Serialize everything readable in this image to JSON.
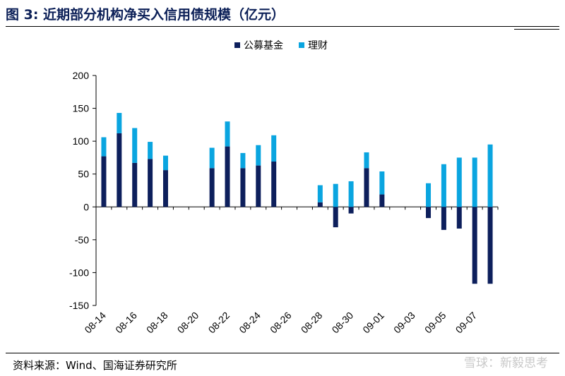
{
  "header": {
    "title": "图 3:  近期部分机构净买入信用债规模（亿元）"
  },
  "footer": {
    "source": "资料来源：Wind、国海证券研究所",
    "watermark": "雪球：新毅思考"
  },
  "colors": {
    "fund": "#0d1f5c",
    "wealth": "#0aa5e0",
    "title": "#0b1f57"
  },
  "chart_data": {
    "type": "bar",
    "stacked": true,
    "title": "",
    "xlabel": "",
    "ylabel": "",
    "ylim": [
      -150,
      200
    ],
    "yticks": [
      -150,
      -100,
      -50,
      0,
      50,
      100,
      150,
      200
    ],
    "grid": false,
    "legend_position": "top-center",
    "x": [
      "08-14",
      "08-15",
      "08-16",
      "08-17",
      "08-18",
      "08-19",
      "08-20",
      "08-21",
      "08-22",
      "08-23",
      "08-24",
      "08-25",
      "08-26",
      "08-27",
      "08-28",
      "08-29",
      "08-30",
      "08-31",
      "09-01",
      "09-02",
      "09-03",
      "09-04",
      "09-05",
      "09-06",
      "09-07",
      "09-08"
    ],
    "xtick_labels": [
      "08-14",
      "08-16",
      "08-18",
      "08-20",
      "08-22",
      "08-24",
      "08-26",
      "08-28",
      "08-30",
      "09-01",
      "09-03",
      "09-05",
      "09-07"
    ],
    "series": [
      {
        "name": "公募基金",
        "color": "#0d1f5c",
        "values": [
          77,
          112,
          67,
          73,
          56,
          null,
          null,
          59,
          92,
          59,
          63,
          69,
          null,
          null,
          7,
          -31,
          -10,
          59,
          19,
          null,
          null,
          -17,
          -35,
          -33,
          -117,
          -117
        ]
      },
      {
        "name": "理财",
        "color": "#0aa5e0",
        "values": [
          29,
          31,
          53,
          26,
          22,
          null,
          null,
          31,
          38,
          23,
          31,
          40,
          null,
          null,
          26,
          35,
          39,
          24,
          35,
          null,
          null,
          36,
          65,
          75,
          75,
          95
        ]
      }
    ]
  }
}
